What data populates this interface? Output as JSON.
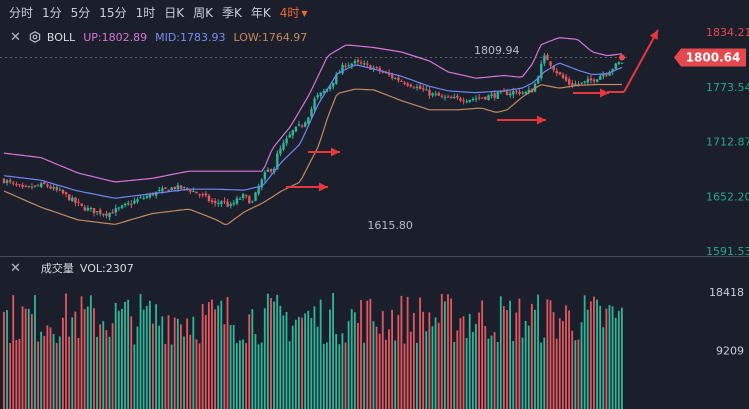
{
  "tabs": [
    {
      "label": "分时",
      "active": false
    },
    {
      "label": "1分",
      "active": false
    },
    {
      "label": "5分",
      "active": false
    },
    {
      "label": "15分",
      "active": false
    },
    {
      "label": "1时",
      "active": false
    },
    {
      "label": "日K",
      "active": false
    },
    {
      "label": "周K",
      "active": false
    },
    {
      "label": "季K",
      "active": false
    },
    {
      "label": "年K",
      "active": false
    },
    {
      "label": "4时",
      "active": true
    }
  ],
  "indicator": {
    "name": "BOLL",
    "up": "UP:1802.89",
    "mid": "MID:1783.93",
    "low": "LOW:1764.97"
  },
  "volume": {
    "name": "成交量",
    "vol": "VOL:2307"
  },
  "colors": {
    "up_candle": "#2fb79a",
    "down_candle": "#e5575c",
    "boll_up": "#d775d7",
    "boll_mid": "#6f86f0",
    "boll_low": "#c38a5e",
    "arrow": "#e5373c",
    "price_tag": "#e5484d"
  },
  "chart_data": {
    "type": "candlestick",
    "y_axis_labels": [
      "1834.21",
      "1773.54",
      "1712.87",
      "1652.20",
      "1591.53"
    ],
    "ylim": [
      1591.53,
      1834.21
    ],
    "current_price": "1800.64",
    "high_annotation": "1809.94",
    "low_annotation": "1615.80",
    "volume_axis_labels": [
      "18418",
      "9209"
    ],
    "volume_max": 18418,
    "n_candles": 200,
    "close_path": [
      [
        0,
        1670
      ],
      [
        10,
        1660
      ],
      [
        22,
        1665
      ],
      [
        32,
        1655
      ],
      [
        42,
        1640
      ],
      [
        50,
        1635
      ],
      [
        56,
        1633
      ],
      [
        62,
        1638
      ],
      [
        72,
        1648
      ],
      [
        82,
        1656
      ],
      [
        92,
        1662
      ],
      [
        100,
        1660
      ],
      [
        108,
        1652
      ],
      [
        114,
        1643
      ],
      [
        118,
        1648
      ],
      [
        122,
        1640
      ],
      [
        126,
        1648
      ],
      [
        130,
        1653
      ],
      [
        134,
        1644
      ],
      [
        138,
        1664
      ],
      [
        142,
        1680
      ],
      [
        146,
        1684
      ],
      [
        148,
        1700
      ],
      [
        152,
        1712
      ],
      [
        156,
        1724
      ],
      [
        162,
        1733
      ],
      [
        166,
        1748
      ],
      [
        168,
        1760
      ],
      [
        174,
        1770
      ],
      [
        180,
        1786
      ],
      [
        184,
        1798
      ],
      [
        190,
        1800
      ],
      [
        200,
        1794
      ],
      [
        210,
        1784
      ],
      [
        220,
        1776
      ],
      [
        230,
        1766
      ],
      [
        240,
        1760
      ],
      [
        252,
        1760
      ],
      [
        262,
        1763
      ],
      [
        270,
        1766
      ],
      [
        276,
        1768
      ],
      [
        282,
        1767
      ],
      [
        286,
        1770
      ],
      [
        288,
        1783
      ],
      [
        290,
        1795
      ],
      [
        292,
        1806
      ],
      [
        294,
        1804
      ],
      [
        296,
        1797
      ],
      [
        300,
        1787
      ],
      [
        306,
        1776
      ],
      [
        312,
        1777
      ],
      [
        318,
        1781
      ],
      [
        322,
        1786
      ],
      [
        326,
        1790
      ],
      [
        328,
        1793
      ],
      [
        332,
        1799
      ],
      [
        334,
        1801
      ]
    ],
    "boll_upper": [
      [
        0,
        1700
      ],
      [
        20,
        1695
      ],
      [
        40,
        1678
      ],
      [
        60,
        1668
      ],
      [
        80,
        1672
      ],
      [
        100,
        1680
      ],
      [
        115,
        1680
      ],
      [
        130,
        1680
      ],
      [
        140,
        1680
      ],
      [
        145,
        1705
      ],
      [
        155,
        1730
      ],
      [
        165,
        1765
      ],
      [
        175,
        1808
      ],
      [
        185,
        1820
      ],
      [
        200,
        1817
      ],
      [
        215,
        1812
      ],
      [
        230,
        1802
      ],
      [
        240,
        1790
      ],
      [
        255,
        1783
      ],
      [
        270,
        1786
      ],
      [
        280,
        1784
      ],
      [
        286,
        1800
      ],
      [
        290,
        1820
      ],
      [
        300,
        1828
      ],
      [
        310,
        1826
      ],
      [
        318,
        1812
      ],
      [
        326,
        1808
      ],
      [
        334,
        1810
      ]
    ],
    "boll_mid": [
      [
        0,
        1675
      ],
      [
        20,
        1670
      ],
      [
        40,
        1658
      ],
      [
        60,
        1650
      ],
      [
        80,
        1655
      ],
      [
        100,
        1660
      ],
      [
        115,
        1660
      ],
      [
        130,
        1659
      ],
      [
        140,
        1664
      ],
      [
        150,
        1690
      ],
      [
        160,
        1710
      ],
      [
        170,
        1755
      ],
      [
        180,
        1788
      ],
      [
        190,
        1798
      ],
      [
        200,
        1793
      ],
      [
        215,
        1785
      ],
      [
        230,
        1774
      ],
      [
        240,
        1769
      ],
      [
        255,
        1767
      ],
      [
        270,
        1769
      ],
      [
        280,
        1772
      ],
      [
        286,
        1778
      ],
      [
        292,
        1790
      ],
      [
        300,
        1800
      ],
      [
        310,
        1792
      ],
      [
        318,
        1787
      ],
      [
        326,
        1788
      ],
      [
        334,
        1795
      ]
    ],
    "boll_lower": [
      [
        0,
        1658
      ],
      [
        20,
        1640
      ],
      [
        40,
        1626
      ],
      [
        60,
        1621
      ],
      [
        80,
        1633
      ],
      [
        100,
        1638
      ],
      [
        115,
        1626
      ],
      [
        120,
        1620
      ],
      [
        130,
        1635
      ],
      [
        140,
        1645
      ],
      [
        150,
        1658
      ],
      [
        160,
        1668
      ],
      [
        170,
        1708
      ],
      [
        175,
        1740
      ],
      [
        180,
        1766
      ],
      [
        190,
        1771
      ],
      [
        200,
        1770
      ],
      [
        215,
        1758
      ],
      [
        230,
        1748
      ],
      [
        245,
        1748
      ],
      [
        258,
        1750
      ],
      [
        266,
        1745
      ],
      [
        272,
        1748
      ],
      [
        280,
        1762
      ],
      [
        290,
        1776
      ],
      [
        300,
        1772
      ],
      [
        310,
        1775
      ],
      [
        320,
        1776
      ],
      [
        334,
        1776
      ]
    ]
  }
}
